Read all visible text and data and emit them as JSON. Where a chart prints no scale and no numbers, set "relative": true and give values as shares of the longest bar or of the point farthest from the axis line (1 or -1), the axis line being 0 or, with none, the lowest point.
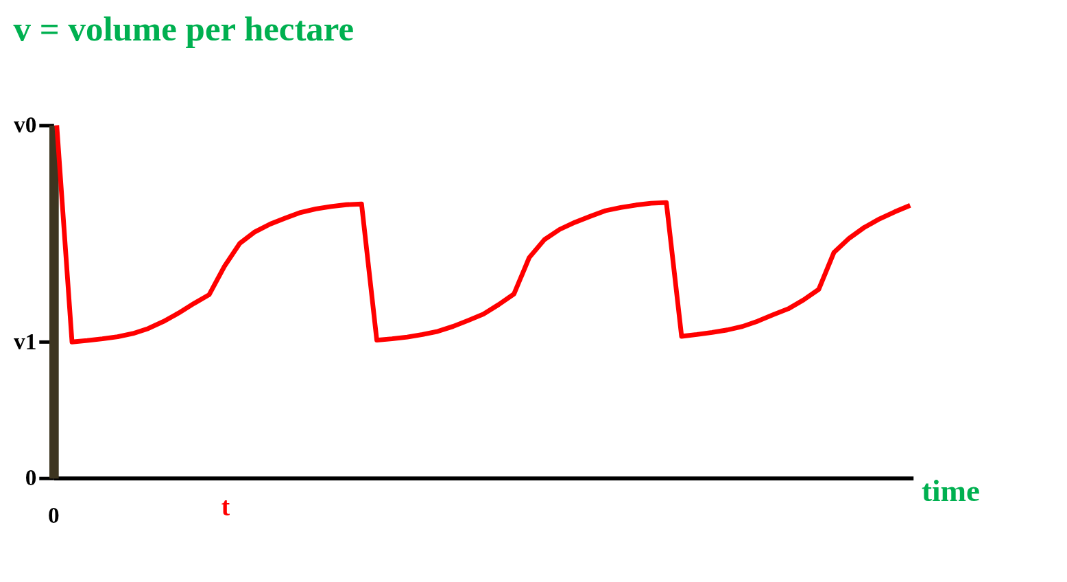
{
  "chart_data": {
    "type": "line",
    "title": "v = volume per hectare",
    "xlabel": "time",
    "categories": [
      null,
      null,
      null,
      null,
      null,
      null,
      null,
      null,
      null,
      null,
      null,
      null,
      null,
      null,
      null,
      null,
      null,
      null,
      null,
      null,
      null,
      null,
      null,
      null,
      null,
      null,
      null,
      null,
      null,
      null,
      null,
      null,
      null,
      null,
      null,
      null,
      null,
      null,
      null,
      null,
      null,
      null,
      null,
      null,
      null,
      null,
      null,
      null,
      null,
      null,
      null,
      null,
      null,
      null,
      null,
      null,
      null
    ],
    "series": [
      {
        "color": "#ff0000",
        "values": [
          1,
          0.386,
          0.39,
          0.395,
          0.401,
          0.41,
          0.424,
          0.444,
          0.468,
          0.495,
          0.52,
          0.6,
          0.665,
          0.698,
          0.72,
          0.737,
          0.753,
          0.763,
          0.77,
          0.775,
          0.777,
          0.391,
          0.395,
          0.4,
          0.407,
          0.416,
          0.43,
          0.447,
          0.465,
          0.492,
          0.522,
          0.625,
          0.676,
          0.705,
          0.725,
          0.742,
          0.758,
          0.767,
          0.774,
          0.779,
          0.781,
          0.402,
          0.407,
          0.413,
          0.42,
          0.43,
          0.445,
          0.463,
          0.48,
          0.505,
          0.535,
          0.64,
          0.68,
          0.711,
          0.735,
          0.755,
          0.773
        ]
      }
    ],
    "relative": true,
    "annotations": [
      "0",
      "t",
      "v0",
      "v1",
      "0"
    ],
    "grid": false,
    "marker": "none",
    "line_style": "solid"
  }
}
